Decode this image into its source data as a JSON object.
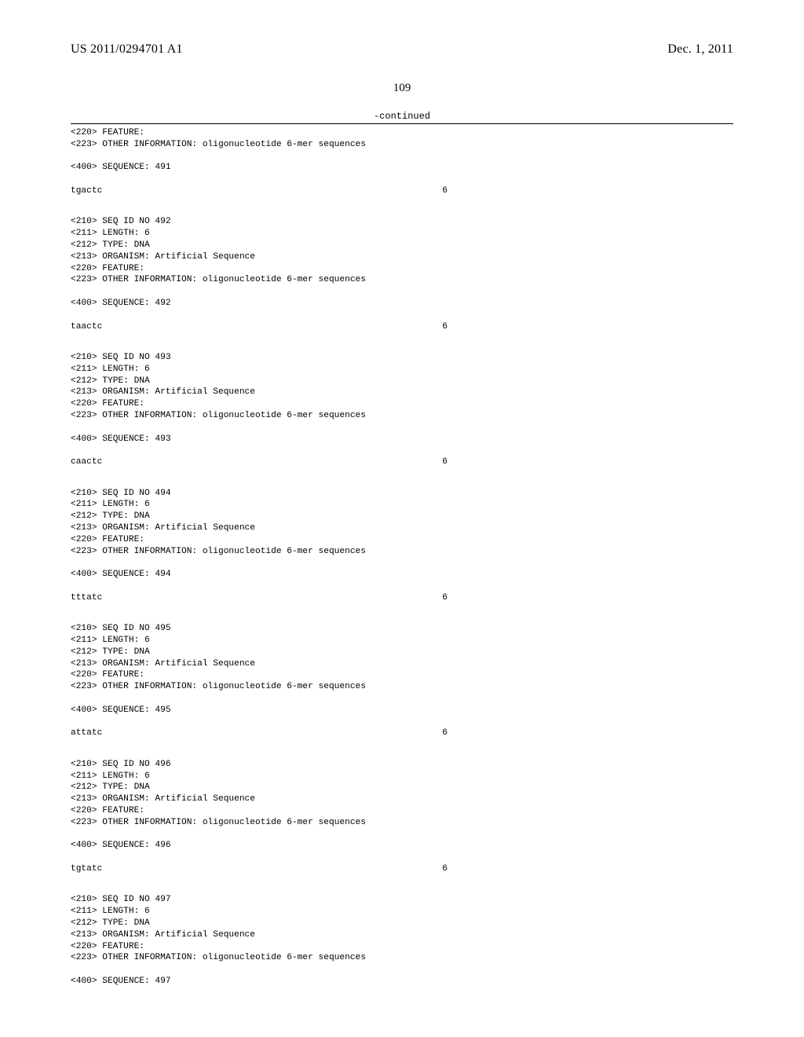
{
  "header": {
    "pub_number": "US 2011/0294701 A1",
    "pub_date": "Dec. 1, 2011"
  },
  "page_number": "109",
  "continued_label": "-continued",
  "listing_width_chars": 65,
  "sequence_length_label": "6",
  "lead_block": {
    "lines": [
      "<220> FEATURE:",
      "<223> OTHER INFORMATION: oligonucleotide 6-mer sequences",
      "",
      "<400> SEQUENCE: 491"
    ],
    "sequence": "tgactc"
  },
  "blocks": [
    {
      "lines": [
        "<210> SEQ ID NO 492",
        "<211> LENGTH: 6",
        "<212> TYPE: DNA",
        "<213> ORGANISM: Artificial Sequence",
        "<220> FEATURE:",
        "<223> OTHER INFORMATION: oligonucleotide 6-mer sequences",
        "",
        "<400> SEQUENCE: 492"
      ],
      "sequence": "taactc"
    },
    {
      "lines": [
        "<210> SEQ ID NO 493",
        "<211> LENGTH: 6",
        "<212> TYPE: DNA",
        "<213> ORGANISM: Artificial Sequence",
        "<220> FEATURE:",
        "<223> OTHER INFORMATION: oligonucleotide 6-mer sequences",
        "",
        "<400> SEQUENCE: 493"
      ],
      "sequence": "caactc"
    },
    {
      "lines": [
        "<210> SEQ ID NO 494",
        "<211> LENGTH: 6",
        "<212> TYPE: DNA",
        "<213> ORGANISM: Artificial Sequence",
        "<220> FEATURE:",
        "<223> OTHER INFORMATION: oligonucleotide 6-mer sequences",
        "",
        "<400> SEQUENCE: 494"
      ],
      "sequence": "tttatc"
    },
    {
      "lines": [
        "<210> SEQ ID NO 495",
        "<211> LENGTH: 6",
        "<212> TYPE: DNA",
        "<213> ORGANISM: Artificial Sequence",
        "<220> FEATURE:",
        "<223> OTHER INFORMATION: oligonucleotide 6-mer sequences",
        "",
        "<400> SEQUENCE: 495"
      ],
      "sequence": "attatc"
    },
    {
      "lines": [
        "<210> SEQ ID NO 496",
        "<211> LENGTH: 6",
        "<212> TYPE: DNA",
        "<213> ORGANISM: Artificial Sequence",
        "<220> FEATURE:",
        "<223> OTHER INFORMATION: oligonucleotide 6-mer sequences",
        "",
        "<400> SEQUENCE: 496"
      ],
      "sequence": "tgtatc"
    }
  ],
  "tail_block": {
    "lines": [
      "<210> SEQ ID NO 497",
      "<211> LENGTH: 6",
      "<212> TYPE: DNA",
      "<213> ORGANISM: Artificial Sequence",
      "<220> FEATURE:",
      "<223> OTHER INFORMATION: oligonucleotide 6-mer sequences",
      "",
      "<400> SEQUENCE: 497"
    ]
  }
}
